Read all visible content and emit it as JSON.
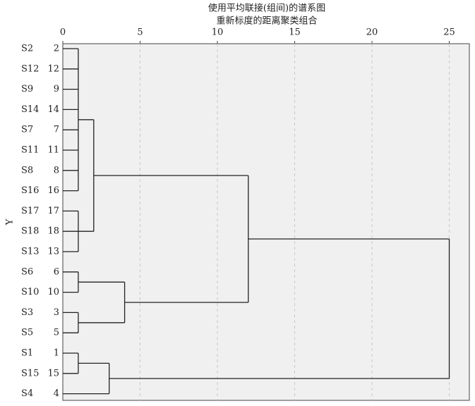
{
  "chart_data": {
    "type": "dendrogram",
    "title": "使用平均联接(组间)的谱系图",
    "subtitle": "重新标度的距离聚类组合",
    "ylabel": "Y",
    "xlim": [
      0,
      26.3
    ],
    "xticks": [
      0,
      5,
      10,
      15,
      20,
      25
    ],
    "grid": true,
    "color": "#222222",
    "leaves": [
      {
        "name": "S2",
        "case": "2"
      },
      {
        "name": "S12",
        "case": "12"
      },
      {
        "name": "S9",
        "case": "9"
      },
      {
        "name": "S14",
        "case": "14"
      },
      {
        "name": "S7",
        "case": "7"
      },
      {
        "name": "S11",
        "case": "11"
      },
      {
        "name": "S8",
        "case": "8"
      },
      {
        "name": "S16",
        "case": "16"
      },
      {
        "name": "S17",
        "case": "17"
      },
      {
        "name": "S18",
        "case": "18"
      },
      {
        "name": "S13",
        "case": "13"
      },
      {
        "name": "S6",
        "case": "6"
      },
      {
        "name": "S10",
        "case": "10"
      },
      {
        "name": "S3",
        "case": "3"
      },
      {
        "name": "S5",
        "case": "5"
      },
      {
        "name": "S1",
        "case": "1"
      },
      {
        "name": "S15",
        "case": "15"
      },
      {
        "name": "S4",
        "case": "4"
      }
    ],
    "clusters": [
      {
        "height": 1,
        "children": [
          {
            "leaf": 0
          },
          {
            "leaf": 1
          },
          {
            "leaf": 2
          },
          {
            "leaf": 3
          },
          {
            "leaf": 4
          },
          {
            "leaf": 5
          },
          {
            "leaf": 6
          },
          {
            "leaf": 7
          }
        ]
      },
      {
        "height": 1,
        "children": [
          {
            "leaf": 8
          },
          {
            "leaf": 9
          },
          {
            "leaf": 10
          }
        ]
      },
      {
        "height": 2,
        "children": [
          {
            "cluster": 0
          },
          {
            "cluster": 1
          }
        ]
      },
      {
        "height": 1,
        "children": [
          {
            "leaf": 11
          },
          {
            "leaf": 12
          }
        ]
      },
      {
        "height": 1,
        "children": [
          {
            "leaf": 13
          },
          {
            "leaf": 14
          }
        ]
      },
      {
        "height": 4,
        "children": [
          {
            "cluster": 3
          },
          {
            "cluster": 4
          }
        ]
      },
      {
        "height": 12,
        "children": [
          {
            "cluster": 2
          },
          {
            "cluster": 5
          }
        ]
      },
      {
        "height": 1,
        "children": [
          {
            "leaf": 15
          },
          {
            "leaf": 16
          }
        ]
      },
      {
        "height": 3,
        "children": [
          {
            "cluster": 7
          },
          {
            "leaf": 17
          }
        ]
      },
      {
        "height": 25,
        "children": [
          {
            "cluster": 6
          },
          {
            "cluster": 8
          }
        ]
      }
    ]
  }
}
